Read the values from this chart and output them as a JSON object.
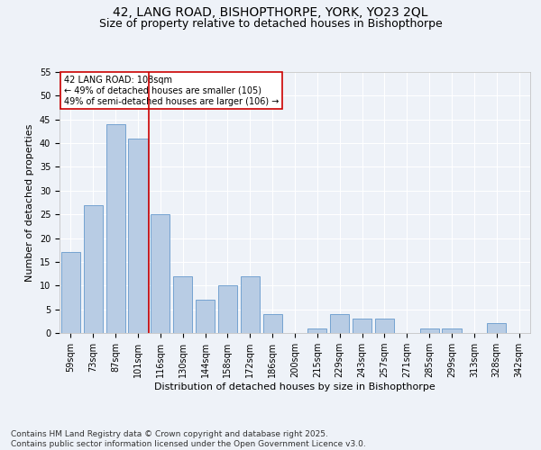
{
  "title1": "42, LANG ROAD, BISHOPTHORPE, YORK, YO23 2QL",
  "title2": "Size of property relative to detached houses in Bishopthorpe",
  "xlabel": "Distribution of detached houses by size in Bishopthorpe",
  "ylabel": "Number of detached properties",
  "categories": [
    "59sqm",
    "73sqm",
    "87sqm",
    "101sqm",
    "116sqm",
    "130sqm",
    "144sqm",
    "158sqm",
    "172sqm",
    "186sqm",
    "200sqm",
    "215sqm",
    "229sqm",
    "243sqm",
    "257sqm",
    "271sqm",
    "285sqm",
    "299sqm",
    "313sqm",
    "328sqm",
    "342sqm"
  ],
  "values": [
    17,
    27,
    44,
    41,
    25,
    12,
    7,
    10,
    12,
    4,
    0,
    1,
    4,
    3,
    3,
    0,
    1,
    1,
    0,
    2,
    0
  ],
  "bar_color": "#b8cce4",
  "bar_edge_color": "#6699cc",
  "vline_x": 3.5,
  "vline_color": "#cc0000",
  "annotation_text": "42 LANG ROAD: 108sqm\n← 49% of detached houses are smaller (105)\n49% of semi-detached houses are larger (106) →",
  "annotation_box_color": "white",
  "annotation_box_edge": "#cc0000",
  "ylim": [
    0,
    55
  ],
  "yticks": [
    0,
    5,
    10,
    15,
    20,
    25,
    30,
    35,
    40,
    45,
    50,
    55
  ],
  "footer": "Contains HM Land Registry data © Crown copyright and database right 2025.\nContains public sector information licensed under the Open Government Licence v3.0.",
  "background_color": "#eef2f8",
  "grid_color": "#ffffff",
  "title_fontsize": 10,
  "subtitle_fontsize": 9,
  "axis_label_fontsize": 8,
  "tick_fontsize": 7,
  "annotation_fontsize": 7,
  "footer_fontsize": 6.5
}
